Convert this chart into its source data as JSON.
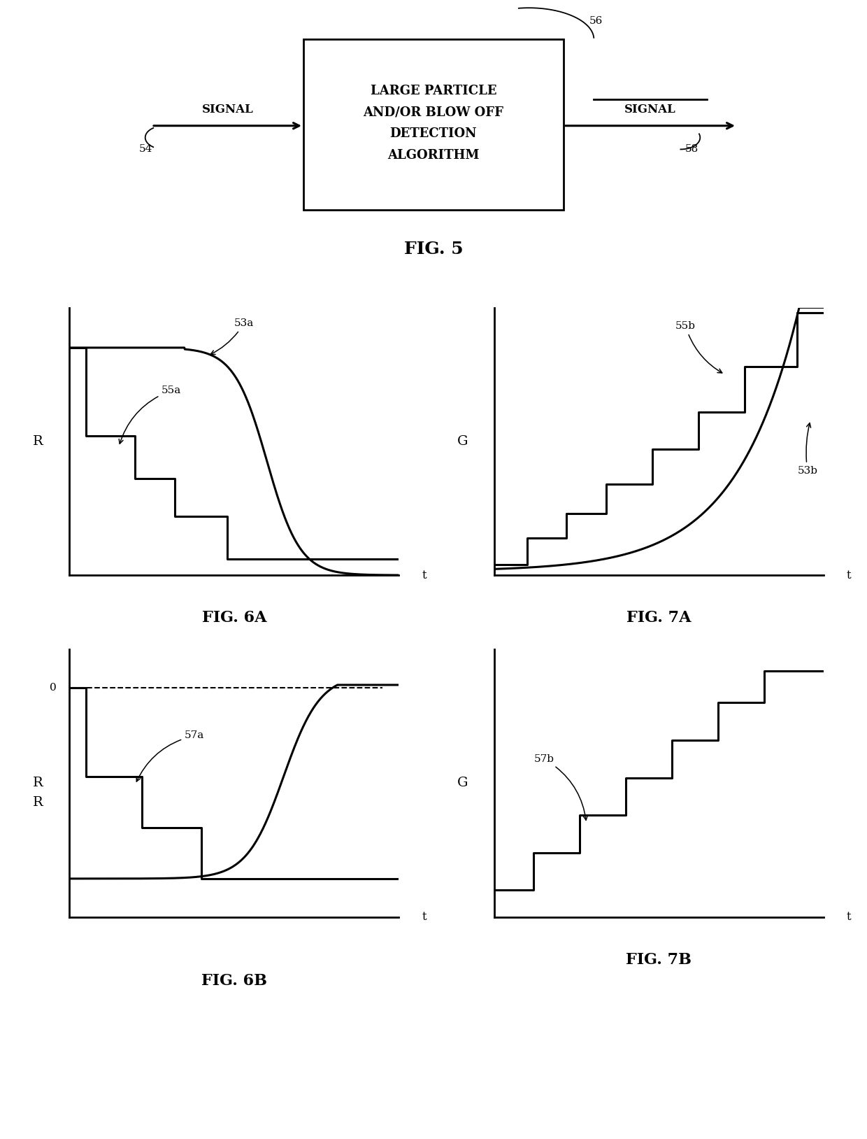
{
  "bg_color": "#ffffff",
  "line_color": "#000000",
  "fig5": {
    "box_text": "LARGE PARTICLE\nAND/OR BLOW OFF\nDETECTION\nALGORITHM",
    "label_56": "56",
    "label_54": "54",
    "label_58": "58",
    "signal_in": "SIGNAL",
    "signal_out": "SIGNAL",
    "fig_label": "FIG. 5"
  },
  "fig6a": {
    "ylabel": "R",
    "xlabel": "t",
    "label_53a": "53a",
    "label_55a": "55a",
    "fig_label": "FIG. 6A"
  },
  "fig7a": {
    "ylabel": "G",
    "xlabel": "t",
    "label_55b": "55b",
    "label_53b": "53b",
    "fig_label": "FIG. 7A"
  },
  "fig6b": {
    "ylabel": "R",
    "xlabel": "t",
    "zero_label": "0",
    "label_57a": "57a",
    "fig_label": "FIG. 6B"
  },
  "fig7b": {
    "ylabel": "G",
    "xlabel": "t",
    "label_57b": "57b",
    "fig_label": "FIG. 7B"
  }
}
